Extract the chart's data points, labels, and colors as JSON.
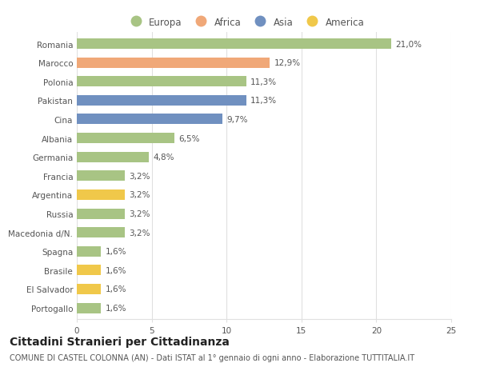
{
  "categories": [
    "Romania",
    "Marocco",
    "Polonia",
    "Pakistan",
    "Cina",
    "Albania",
    "Germania",
    "Francia",
    "Argentina",
    "Russia",
    "Macedonia d/N.",
    "Spagna",
    "Brasile",
    "El Salvador",
    "Portogallo"
  ],
  "values": [
    21.0,
    12.9,
    11.3,
    11.3,
    9.7,
    6.5,
    4.8,
    3.2,
    3.2,
    3.2,
    3.2,
    1.6,
    1.6,
    1.6,
    1.6
  ],
  "labels": [
    "21,0%",
    "12,9%",
    "11,3%",
    "11,3%",
    "9,7%",
    "6,5%",
    "4,8%",
    "3,2%",
    "3,2%",
    "3,2%",
    "3,2%",
    "1,6%",
    "1,6%",
    "1,6%",
    "1,6%"
  ],
  "continents": [
    "Europa",
    "Africa",
    "Europa",
    "Asia",
    "Asia",
    "Europa",
    "Europa",
    "Europa",
    "America",
    "Europa",
    "Europa",
    "Europa",
    "America",
    "America",
    "Europa"
  ],
  "colors": {
    "Europa": "#a8c484",
    "Africa": "#f0a878",
    "Asia": "#7090c0",
    "America": "#f0c84a"
  },
  "legend_order": [
    "Europa",
    "Africa",
    "Asia",
    "America"
  ],
  "title": "Cittadini Stranieri per Cittadinanza",
  "subtitle": "COMUNE DI CASTEL COLONNA (AN) - Dati ISTAT al 1° gennaio di ogni anno - Elaborazione TUTTITALIA.IT",
  "xlim": [
    0,
    25
  ],
  "xticks": [
    0,
    5,
    10,
    15,
    20,
    25
  ],
  "background_color": "#ffffff",
  "grid_color": "#e0e0e0",
  "bar_height": 0.55,
  "title_fontsize": 10,
  "subtitle_fontsize": 7,
  "label_fontsize": 7.5,
  "tick_fontsize": 7.5,
  "legend_fontsize": 8.5
}
